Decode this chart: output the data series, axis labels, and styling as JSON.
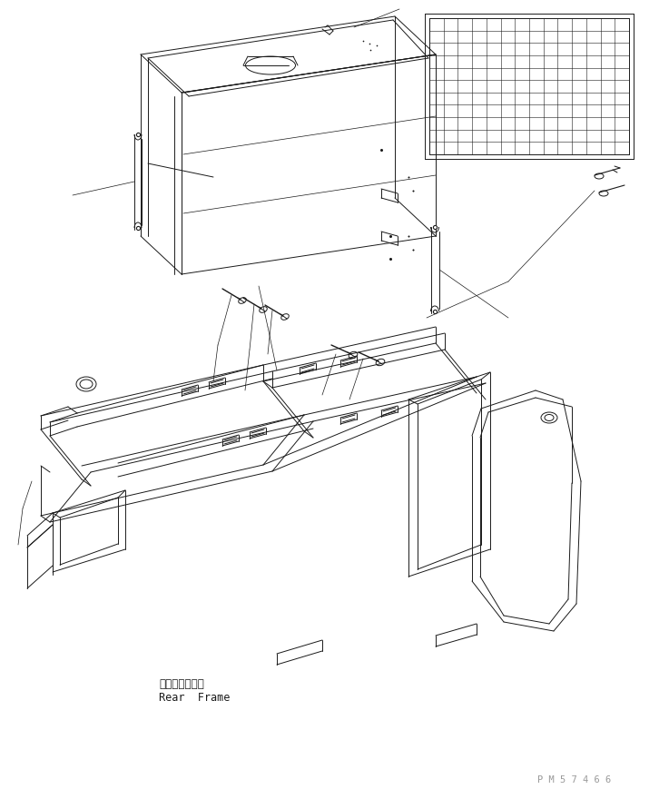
{
  "bg_color": "#ffffff",
  "line_color": "#1a1a1a",
  "line_width": 0.7,
  "label_japanese": "リヤーフレーム",
  "label_english": "Rear  Frame",
  "watermark": "P M 5 7 4 6 6",
  "font_size_label": 8.5,
  "font_size_watermark": 7.5
}
